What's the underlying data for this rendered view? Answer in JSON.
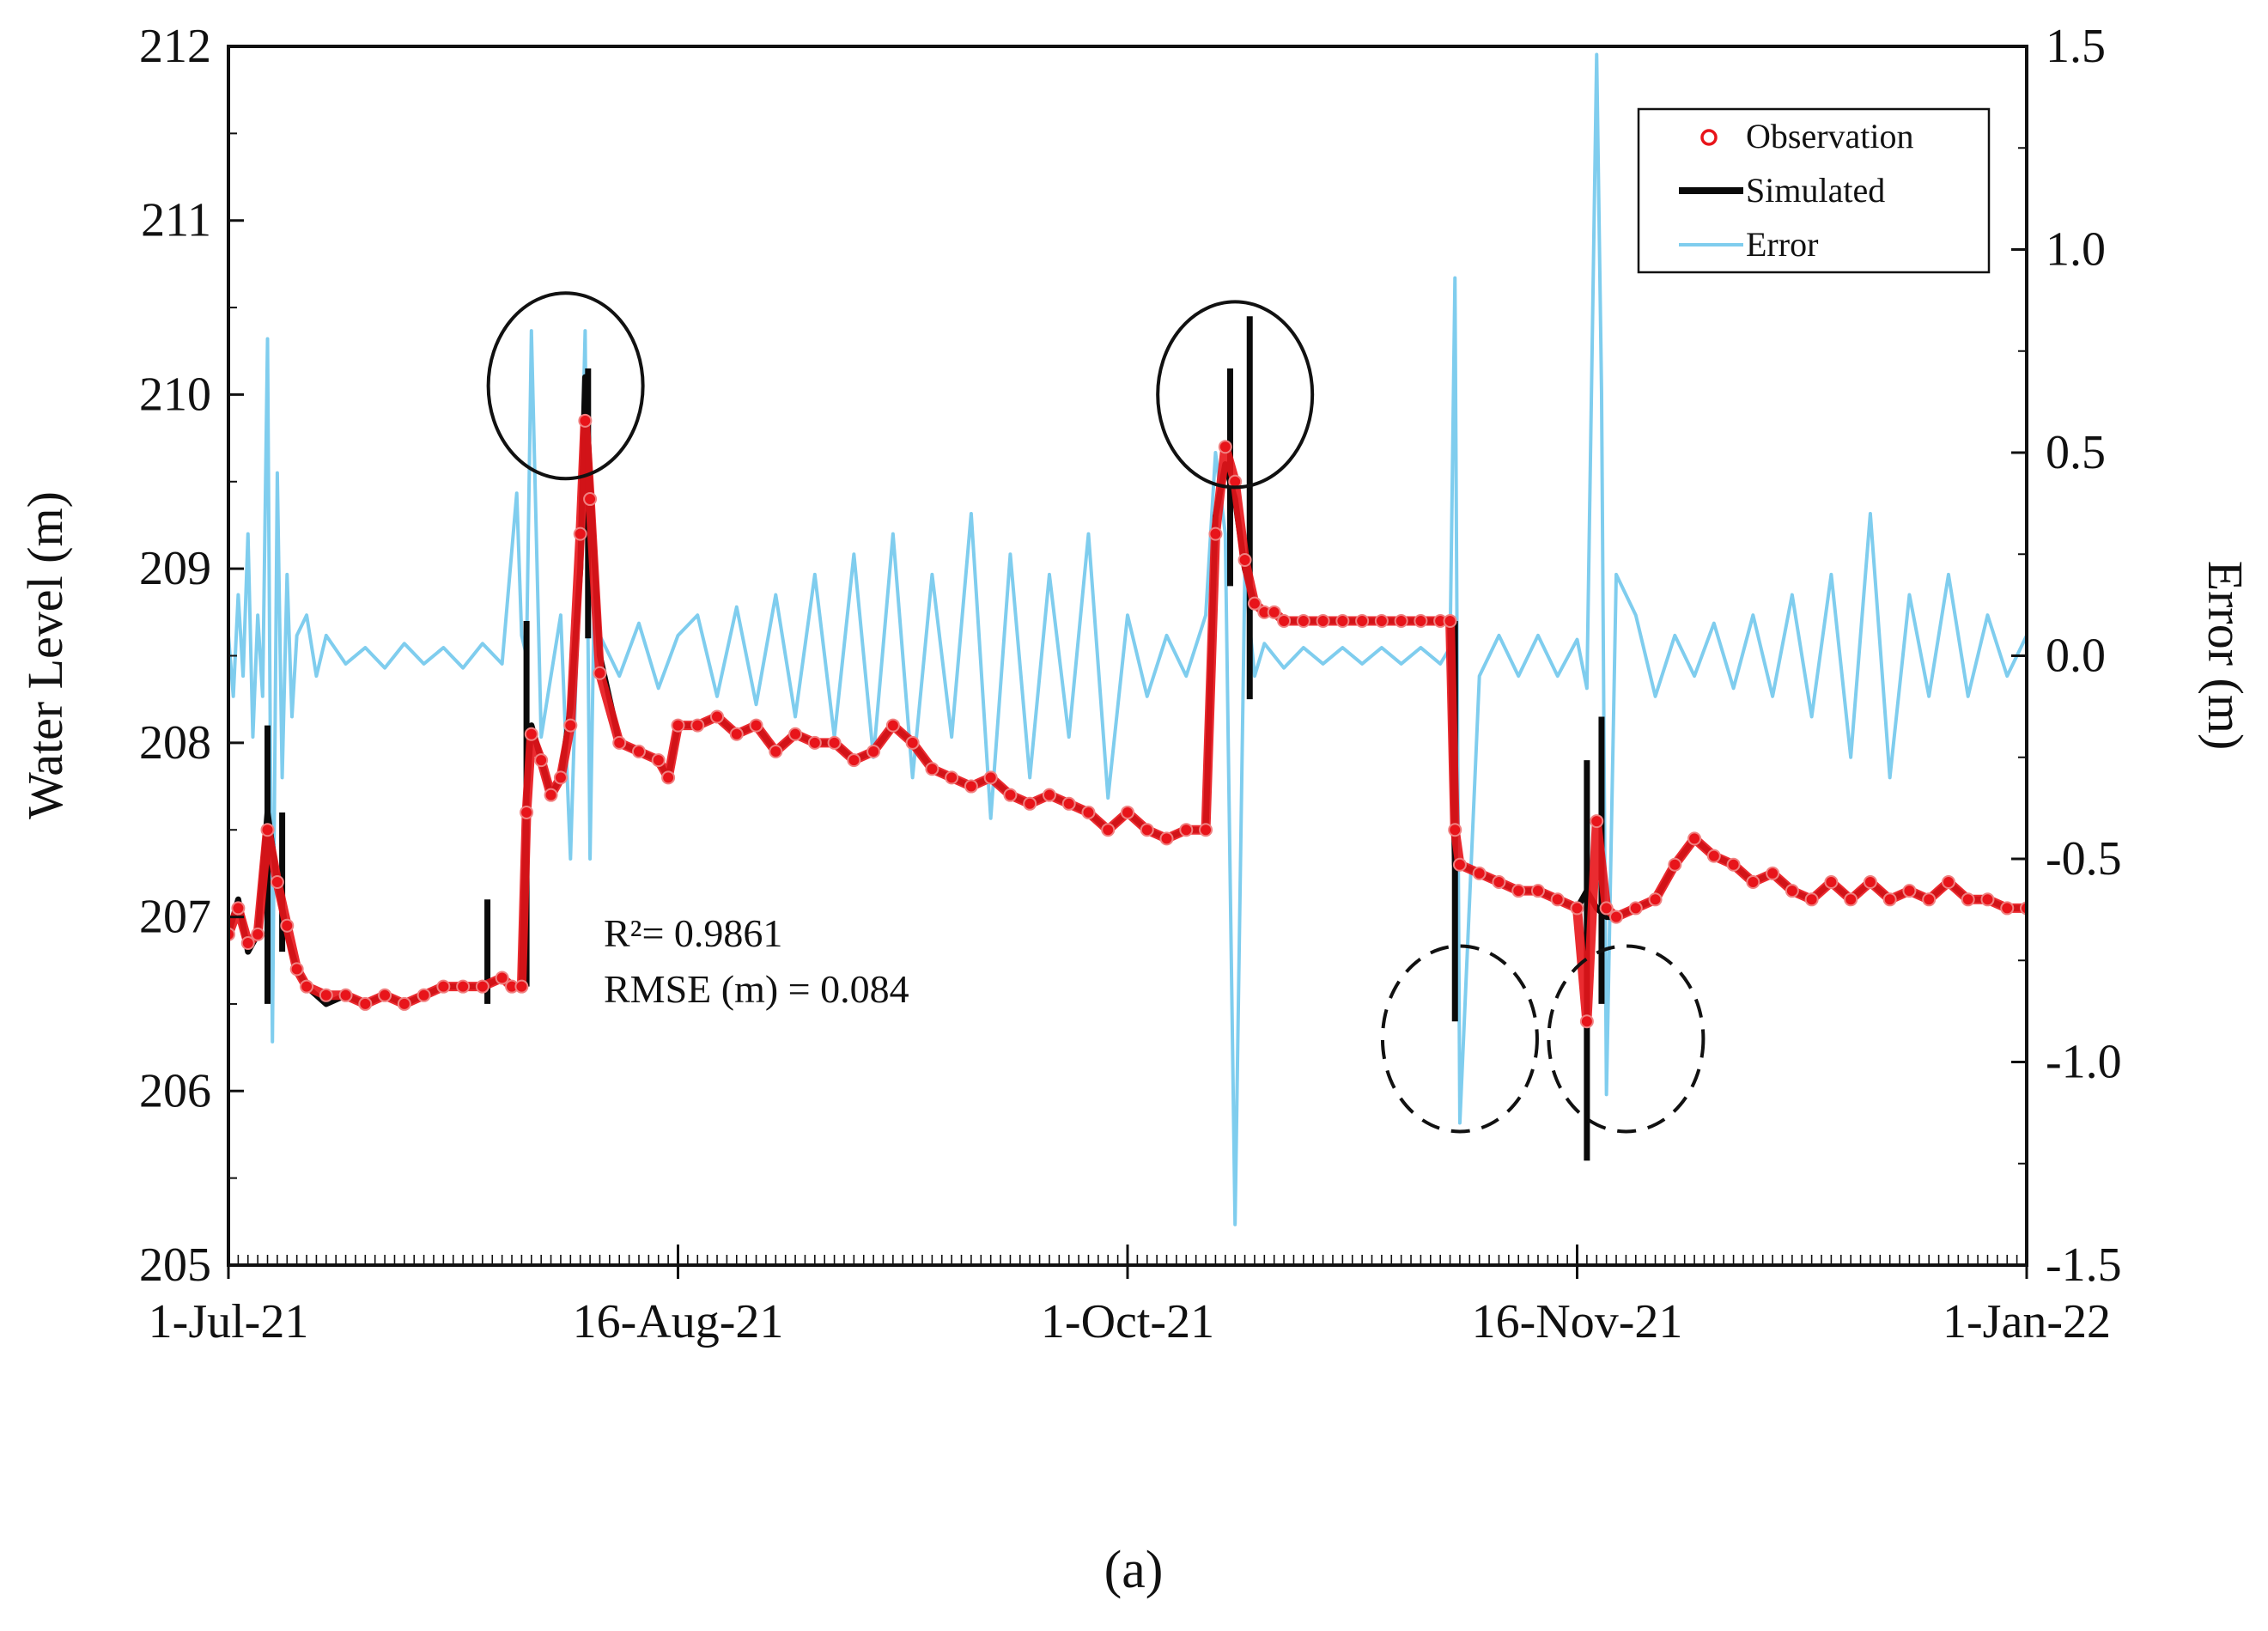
{
  "chart_data": {
    "type": "line",
    "title": "",
    "xlabel": "",
    "ylabel": "Water Level (m)",
    "y2label": "Error (m)",
    "ylim": [
      205,
      212
    ],
    "y2lim": [
      -1.5,
      1.5
    ],
    "xlim_days": [
      0,
      184
    ],
    "x_ticks": [
      {
        "day": 0,
        "label": "1-Jul-21"
      },
      {
        "day": 46,
        "label": "16-Aug-21"
      },
      {
        "day": 92,
        "label": "1-Oct-21"
      },
      {
        "day": 138,
        "label": "16-Nov-21"
      },
      {
        "day": 184,
        "label": "1-Jan-22"
      }
    ],
    "y_ticks": [
      "205",
      "206",
      "207",
      "208",
      "209",
      "210",
      "211",
      "212"
    ],
    "y2_ticks": [
      "-1.5",
      "-1.0",
      "-0.5",
      "0.0",
      "0.5",
      "1.0",
      "1.5"
    ],
    "legend": {
      "position": "top-right",
      "entries": [
        "Observation",
        "Simulated",
        "Error"
      ]
    },
    "colors": {
      "observation": "#e8141a",
      "simulated": "#0a0a0a",
      "error": "#7fcdee",
      "axis": "#111111"
    },
    "series": [
      {
        "name": "Simulated",
        "x_days": [
          0,
          1,
          2,
          3,
          4,
          5,
          6,
          7,
          8,
          10,
          12,
          14,
          16,
          18,
          20,
          22,
          24,
          26,
          28,
          29,
          30,
          30.5,
          31,
          32,
          33,
          34,
          35,
          36,
          36.5,
          37,
          38,
          40,
          42,
          44,
          45,
          46,
          48,
          50,
          52,
          54,
          56,
          58,
          60,
          62,
          64,
          66,
          68,
          70,
          72,
          74,
          76,
          78,
          80,
          82,
          84,
          86,
          88,
          90,
          92,
          94,
          96,
          98,
          100,
          101,
          102,
          103,
          104,
          105,
          106,
          107,
          108,
          110,
          112,
          114,
          116,
          118,
          120,
          122,
          124,
          125,
          125.5,
          126,
          128,
          130,
          132,
          134,
          136,
          138,
          139,
          140,
          141,
          142,
          144,
          146,
          148,
          150,
          152,
          154,
          156,
          158,
          160,
          162,
          164,
          166,
          168,
          170,
          172,
          174,
          176,
          178,
          180,
          182,
          184
        ],
        "y": [
          206.9,
          207.1,
          206.8,
          206.9,
          207.6,
          207.2,
          206.9,
          206.7,
          206.6,
          206.5,
          206.55,
          206.5,
          206.55,
          206.5,
          206.55,
          206.6,
          206.6,
          206.6,
          206.65,
          206.6,
          206.6,
          207.7,
          208.1,
          207.9,
          207.7,
          207.8,
          208.2,
          209.0,
          210.1,
          209.5,
          208.5,
          208.0,
          207.95,
          207.9,
          207.8,
          208.1,
          208.1,
          208.15,
          208.05,
          208.1,
          207.95,
          208.05,
          208.0,
          208.0,
          207.9,
          207.95,
          208.1,
          208.0,
          207.85,
          207.8,
          207.75,
          207.8,
          207.7,
          207.65,
          207.7,
          207.65,
          207.6,
          207.5,
          207.6,
          207.5,
          207.45,
          207.5,
          207.5,
          209.3,
          209.6,
          209.4,
          209.0,
          208.8,
          208.75,
          208.75,
          208.7,
          208.7,
          208.7,
          208.7,
          208.7,
          208.7,
          208.7,
          208.7,
          208.7,
          208.7,
          207.3,
          207.3,
          207.25,
          207.2,
          207.15,
          207.15,
          207.1,
          207.05,
          207.15,
          207.05,
          207.0,
          207.0,
          207.05,
          207.1,
          207.3,
          207.45,
          207.35,
          207.3,
          207.2,
          207.25,
          207.15,
          207.1,
          207.2,
          207.1,
          207.2,
          207.1,
          207.15,
          207.1,
          207.2,
          207.1,
          207.1,
          207.05,
          207.05
        ],
        "spikes": [
          {
            "day": 4.0,
            "low": 206.5,
            "high": 208.1
          },
          {
            "day": 5.5,
            "low": 206.8,
            "high": 207.6
          },
          {
            "day": 26.5,
            "low": 206.5,
            "high": 207.1
          },
          {
            "day": 30.5,
            "low": 206.6,
            "high": 208.7
          },
          {
            "day": 36.8,
            "low": 208.6,
            "high": 210.15
          },
          {
            "day": 102.5,
            "low": 208.9,
            "high": 210.15
          },
          {
            "day": 104.5,
            "low": 208.25,
            "high": 210.45
          },
          {
            "day": 125.5,
            "low": 206.4,
            "high": 208.7
          },
          {
            "day": 139.0,
            "low": 205.6,
            "high": 207.9
          },
          {
            "day": 140.5,
            "low": 206.5,
            "high": 208.15
          }
        ]
      },
      {
        "name": "Observation",
        "x_days": [
          0,
          1,
          2,
          3,
          4,
          5,
          6,
          7,
          8,
          10,
          12,
          14,
          16,
          18,
          20,
          22,
          24,
          26,
          28,
          29,
          30,
          30.5,
          31,
          32,
          33,
          34,
          35,
          36,
          36.5,
          37,
          38,
          40,
          42,
          44,
          45,
          46,
          48,
          50,
          52,
          54,
          56,
          58,
          60,
          62,
          64,
          66,
          68,
          70,
          72,
          74,
          76,
          78,
          80,
          82,
          84,
          86,
          88,
          90,
          92,
          94,
          96,
          98,
          100,
          101,
          102,
          103,
          104,
          105,
          106,
          107,
          108,
          110,
          112,
          114,
          116,
          118,
          120,
          122,
          124,
          125,
          125.5,
          126,
          128,
          130,
          132,
          134,
          136,
          138,
          139,
          140,
          141,
          142,
          144,
          146,
          148,
          150,
          152,
          154,
          156,
          158,
          160,
          162,
          164,
          166,
          168,
          170,
          172,
          174,
          176,
          178,
          180,
          182,
          184
        ],
        "y": [
          206.9,
          207.05,
          206.85,
          206.9,
          207.5,
          207.2,
          206.95,
          206.7,
          206.6,
          206.55,
          206.55,
          206.5,
          206.55,
          206.5,
          206.55,
          206.6,
          206.6,
          206.6,
          206.65,
          206.6,
          206.6,
          207.6,
          208.05,
          207.9,
          207.7,
          207.8,
          208.1,
          209.2,
          209.85,
          209.4,
          208.4,
          208.0,
          207.95,
          207.9,
          207.8,
          208.1,
          208.1,
          208.15,
          208.05,
          208.1,
          207.95,
          208.05,
          208.0,
          208.0,
          207.9,
          207.95,
          208.1,
          208.0,
          207.85,
          207.8,
          207.75,
          207.8,
          207.7,
          207.65,
          207.7,
          207.65,
          207.6,
          207.5,
          207.6,
          207.5,
          207.45,
          207.5,
          207.5,
          209.2,
          209.7,
          209.5,
          209.05,
          208.8,
          208.75,
          208.75,
          208.7,
          208.7,
          208.7,
          208.7,
          208.7,
          208.7,
          208.7,
          208.7,
          208.7,
          208.7,
          207.5,
          207.3,
          207.25,
          207.2,
          207.15,
          207.15,
          207.1,
          207.05,
          206.4,
          207.55,
          207.05,
          207.0,
          207.05,
          207.1,
          207.3,
          207.45,
          207.35,
          207.3,
          207.2,
          207.25,
          207.15,
          207.1,
          207.2,
          207.1,
          207.2,
          207.1,
          207.15,
          207.1,
          207.2,
          207.1,
          207.1,
          207.05,
          207.05
        ]
      },
      {
        "name": "Error",
        "x_days": [
          0,
          0.5,
          1,
          1.5,
          2,
          2.5,
          3,
          3.5,
          4,
          4.5,
          5,
          5.5,
          6,
          6.5,
          7,
          8,
          9,
          10,
          12,
          14,
          16,
          18,
          20,
          22,
          24,
          26,
          28,
          29.5,
          30,
          30.5,
          31,
          32,
          34,
          35,
          36,
          36.5,
          37,
          37.5,
          38,
          40,
          42,
          44,
          46,
          48,
          50,
          52,
          54,
          56,
          58,
          60,
          62,
          64,
          66,
          68,
          70,
          72,
          74,
          76,
          78,
          80,
          82,
          84,
          86,
          88,
          90,
          92,
          94,
          96,
          98,
          100,
          101,
          102,
          103,
          104,
          105,
          106,
          108,
          110,
          112,
          114,
          116,
          118,
          120,
          122,
          124,
          125,
          125.5,
          126,
          128,
          130,
          132,
          134,
          136,
          138,
          139,
          140,
          140.5,
          141,
          142,
          144,
          146,
          148,
          150,
          152,
          154,
          156,
          158,
          160,
          162,
          164,
          166,
          168,
          170,
          172,
          174,
          176,
          178,
          180,
          182,
          184
        ],
        "y": [
          0.05,
          -0.1,
          0.15,
          -0.05,
          0.3,
          -0.2,
          0.1,
          -0.1,
          0.78,
          -0.95,
          0.45,
          -0.3,
          0.2,
          -0.15,
          0.05,
          0.1,
          -0.05,
          0.05,
          -0.02,
          0.02,
          -0.03,
          0.03,
          -0.02,
          0.02,
          -0.03,
          0.03,
          -0.02,
          0.4,
          0.05,
          0.0,
          0.8,
          -0.2,
          0.1,
          -0.5,
          0.3,
          0.8,
          -0.5,
          0.25,
          0.05,
          -0.05,
          0.08,
          -0.08,
          0.05,
          0.1,
          -0.1,
          0.12,
          -0.12,
          0.15,
          -0.15,
          0.2,
          -0.2,
          0.25,
          -0.25,
          0.3,
          -0.3,
          0.2,
          -0.2,
          0.35,
          -0.4,
          0.25,
          -0.3,
          0.2,
          -0.2,
          0.3,
          -0.35,
          0.1,
          -0.1,
          0.05,
          -0.05,
          0.1,
          0.5,
          0.3,
          -1.4,
          0.2,
          -0.05,
          0.03,
          -0.03,
          0.02,
          -0.02,
          0.02,
          -0.02,
          0.02,
          -0.02,
          0.02,
          -0.02,
          0.02,
          0.93,
          -1.15,
          -0.05,
          0.05,
          -0.05,
          0.05,
          -0.05,
          0.04,
          -0.08,
          1.48,
          0.65,
          -1.08,
          0.2,
          0.1,
          -0.1,
          0.05,
          -0.05,
          0.08,
          -0.08,
          0.1,
          -0.1,
          0.15,
          -0.15,
          0.2,
          -0.25,
          0.35,
          -0.3,
          0.15,
          -0.1,
          0.2,
          -0.1,
          0.1,
          -0.05,
          0.05
        ]
      }
    ],
    "annotations": [
      {
        "type": "text",
        "label": "R²=  0.9861"
      },
      {
        "type": "text",
        "label": "RMSE (m) = 0.084"
      },
      {
        "type": "circle-solid",
        "center_day": 34.5,
        "center_value": 210.05
      },
      {
        "type": "circle-solid",
        "center_day": 103.0,
        "center_value": 210.0
      },
      {
        "type": "circle-dashed",
        "center_day": 126.0,
        "center_value": 206.3
      },
      {
        "type": "circle-dashed",
        "center_day": 143.0,
        "center_value": 206.3
      }
    ],
    "caption": "(a)"
  }
}
